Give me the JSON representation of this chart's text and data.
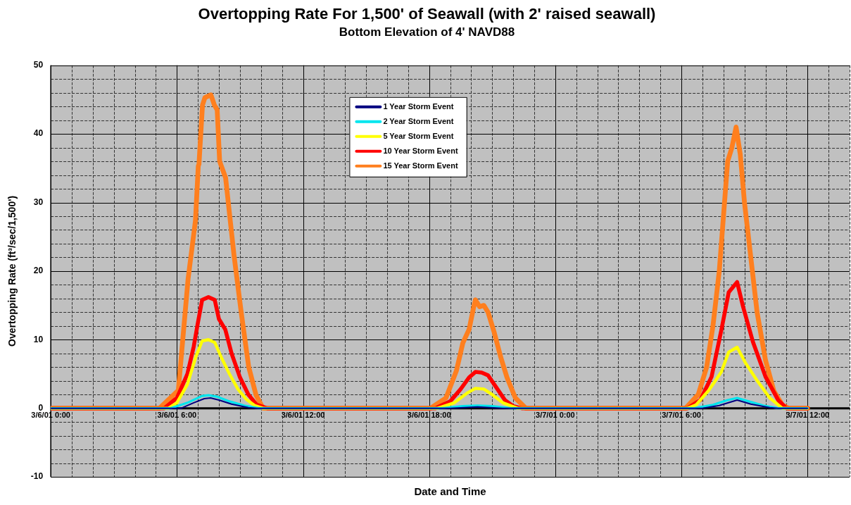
{
  "chart_data": {
    "type": "line",
    "title": "Overtopping Rate For 1,500' of Seawall (with 2' raised seawall)",
    "subtitle": "Bottom Elevation of 4' NAVD88",
    "xlabel": "Date and Time",
    "ylabel": "Overtopping Rate (ft³/sec/1,500')",
    "xlim": [
      "--03-06T00:00",
      "--03-07T14:00"
    ],
    "xticks": [
      {
        "value": "--03-06T00:00",
        "label": "3/6/01 0:00"
      },
      {
        "value": "--03-06T06:00",
        "label": "3/6/01 6:00"
      },
      {
        "value": "--03-06T12:00",
        "label": "3/6/01 12:00"
      },
      {
        "value": "--03-06T18:00",
        "label": "3/6/01 18:00"
      },
      {
        "value": "--03-07T00:00",
        "label": "3/7/01 0:00"
      },
      {
        "value": "--03-07T06:00",
        "label": "3/7/01 6:00"
      },
      {
        "value": "--03-07T12:00",
        "label": "3/7/01 12:00"
      }
    ],
    "ylim": [
      -10,
      50
    ],
    "yticks": [
      -10,
      0,
      10,
      20,
      30,
      40,
      50
    ],
    "grid": true,
    "legend": "top",
    "marker": "none",
    "line_style": "solid",
    "series": [
      {
        "name": "1 Year Storm Event",
        "color": "#000080",
        "x": [
          "--03-06T00:00",
          "--03-06T06:12",
          "--03-06T06:48",
          "--03-06T07:18",
          "--03-06T07:36",
          "--03-06T08:00",
          "--03-06T08:36",
          "--03-06T09:24",
          "--03-06T09:48",
          "--03-06T19:00",
          "--03-06T20:18",
          "--03-06T21:30",
          "--03-07T07:00",
          "--03-07T07:48",
          "--03-07T08:39",
          "--03-07T09:18",
          "--03-07T10:12",
          "--03-07T10:36",
          "--03-07T12:00"
        ],
        "values": [
          0,
          0,
          0.8,
          1.4,
          1.5,
          1.2,
          0.6,
          0.1,
          0,
          0,
          0.2,
          0,
          0,
          0.4,
          1.2,
          0.6,
          0.1,
          0,
          0
        ]
      },
      {
        "name": "2 Year Storm Event",
        "color": "#00e5ee",
        "x": [
          "--03-06T00:00",
          "--03-06T05:42",
          "--03-06T06:30",
          "--03-06T07:12",
          "--03-06T07:30",
          "--03-06T07:54",
          "--03-06T08:30",
          "--03-06T09:12",
          "--03-06T09:54",
          "--03-06T18:36",
          "--03-06T19:36",
          "--03-06T20:18",
          "--03-06T21:00",
          "--03-06T21:54",
          "--03-07T06:36",
          "--03-07T07:30",
          "--03-07T08:12",
          "--03-07T08:39",
          "--03-07T09:12",
          "--03-07T09:54",
          "--03-07T10:36",
          "--03-07T12:00"
        ],
        "values": [
          0,
          0,
          0.8,
          1.8,
          1.9,
          1.7,
          1.0,
          0.4,
          0,
          0,
          0.3,
          0.4,
          0.3,
          0,
          0,
          0.5,
          1.2,
          1.5,
          1.0,
          0.4,
          0,
          0
        ]
      },
      {
        "name": "5 Year Storm Event",
        "color": "#ffff00",
        "x": [
          "--03-06T00:00",
          "--03-06T05:36",
          "--03-06T06:00",
          "--03-06T06:30",
          "--03-06T06:54",
          "--03-06T07:12",
          "--03-06T07:30",
          "--03-06T07:48",
          "--03-06T08:06",
          "--03-06T08:30",
          "--03-06T08:54",
          "--03-06T09:18",
          "--03-06T09:42",
          "--03-06T10:06",
          "--03-06T18:24",
          "--03-06T19:12",
          "--03-06T19:48",
          "--03-06T20:12",
          "--03-06T20:36",
          "--03-06T21:00",
          "--03-06T21:30",
          "--03-06T22:12",
          "--03-07T06:18",
          "--03-07T06:42",
          "--03-07T07:18",
          "--03-07T07:54",
          "--03-07T08:15",
          "--03-07T08:39",
          "--03-07T09:03",
          "--03-07T09:38",
          "--03-07T10:12",
          "--03-07T10:48",
          "--03-07T12:00"
        ],
        "values": [
          0,
          0,
          0.8,
          3.5,
          7.5,
          9.8,
          10,
          9.6,
          7.5,
          5,
          2.8,
          1.3,
          0.4,
          0,
          0,
          0.8,
          2.2,
          2.9,
          2.8,
          2,
          0.8,
          0,
          0,
          0.5,
          2.6,
          5.3,
          8.2,
          8.9,
          6.6,
          3.9,
          1.5,
          0,
          0
        ]
      },
      {
        "name": "10 Year Storm Event",
        "color": "#ff0000",
        "x": [
          "--03-06T00:00",
          "--03-06T05:24",
          "--03-06T06:00",
          "--03-06T06:30",
          "--03-06T06:48",
          "--03-06T07:00",
          "--03-06T07:12",
          "--03-06T07:30",
          "--03-06T07:48",
          "--03-06T08:00",
          "--03-06T08:18",
          "--03-06T08:36",
          "--03-06T09:00",
          "--03-06T09:24",
          "--03-06T09:48",
          "--03-06T10:18",
          "--03-06T18:18",
          "--03-06T19:00",
          "--03-06T19:30",
          "--03-06T19:54",
          "--03-06T20:12",
          "--03-06T20:30",
          "--03-06T20:48",
          "--03-06T21:12",
          "--03-06T21:36",
          "--03-06T22:00",
          "--03-06T22:24",
          "--03-07T06:18",
          "--03-07T06:54",
          "--03-07T07:26",
          "--03-07T07:54",
          "--03-07T08:15",
          "--03-07T08:39",
          "--03-07T08:56",
          "--03-07T09:24",
          "--03-07T10:00",
          "--03-07T10:36",
          "--03-07T11:00",
          "--03-07T12:00"
        ],
        "values": [
          0,
          0,
          1.5,
          5,
          9,
          12.5,
          15.8,
          16.2,
          15.8,
          13,
          11.5,
          8,
          4.5,
          2,
          0.5,
          0,
          0,
          1,
          2.8,
          4.5,
          5.3,
          5.2,
          4.8,
          3,
          1.2,
          0.3,
          0,
          0,
          1.2,
          4.6,
          11.4,
          16.9,
          18.4,
          14.8,
          9.7,
          4.6,
          1.2,
          0,
          0
        ]
      },
      {
        "name": "15 Year Storm Event",
        "color": "#ff7f1e",
        "x": [
          "--03-06T00:00",
          "--03-06T05:10",
          "--03-06T06:04",
          "--03-06T06:32",
          "--03-06T06:53",
          "--03-06T07:01",
          "--03-06T07:03",
          "--03-06T07:13",
          "--03-06T07:20",
          "--03-06T07:37",
          "--03-06T07:47",
          "--03-06T07:55",
          "--03-06T08:02",
          "--03-06T08:19",
          "--03-06T08:43",
          "--03-06T09:04",
          "--03-06T09:25",
          "--03-06T09:46",
          "--03-06T10:06",
          "--03-06T18:04",
          "--03-06T18:48",
          "--03-06T19:18",
          "--03-06T19:36",
          "--03-06T19:54",
          "--03-06T20:06",
          "--03-06T20:12",
          "--03-06T20:24",
          "--03-06T20:36",
          "--03-06T20:48",
          "--03-06T21:06",
          "--03-06T21:24",
          "--03-06T21:42",
          "--03-06T22:06",
          "--03-06T22:36",
          "--03-07T06:12",
          "--03-07T06:48",
          "--03-07T07:12",
          "--03-07T07:30",
          "--03-07T07:48",
          "--03-07T08:00",
          "--03-07T08:12",
          "--03-07T08:24",
          "--03-07T08:36",
          "--03-07T08:48",
          "--03-07T09:00",
          "--03-07T09:18",
          "--03-07T09:36",
          "--03-07T10:00",
          "--03-07T10:24",
          "--03-07T10:48",
          "--03-07T11:06",
          "--03-07T12:00"
        ],
        "values": [
          0,
          0,
          2.6,
          18.9,
          27.4,
          35.3,
          35.6,
          44.2,
          45.3,
          45.7,
          44.2,
          43.5,
          36,
          33.6,
          22.3,
          13.8,
          6,
          1.9,
          0,
          0,
          1.5,
          5.5,
          9.5,
          11.5,
          14.5,
          15.8,
          14.8,
          15,
          14,
          11,
          7.5,
          4.5,
          1.5,
          0,
          0,
          2,
          6,
          12,
          20,
          28,
          36,
          38,
          41,
          37,
          30,
          22,
          14,
          7,
          2.5,
          0.5,
          0,
          0
        ]
      }
    ]
  }
}
